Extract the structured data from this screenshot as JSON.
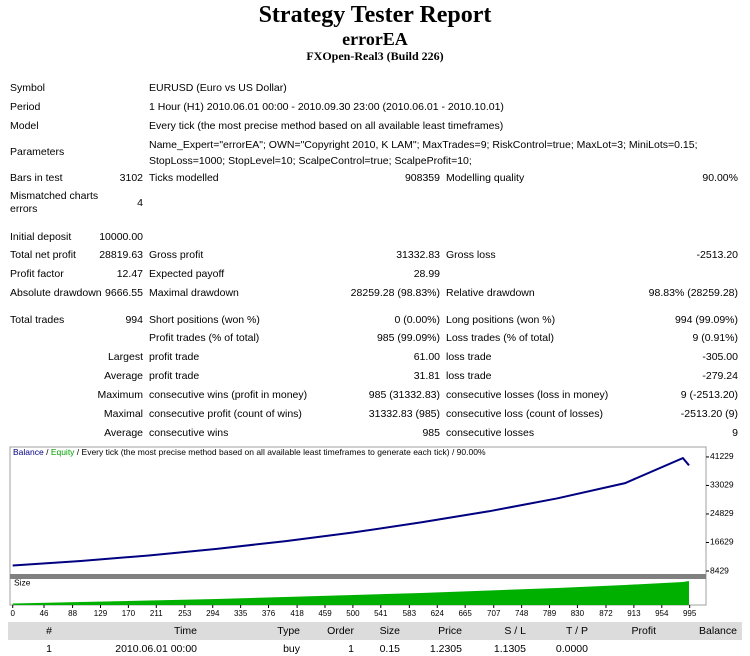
{
  "header": {
    "title": "Strategy Tester Report",
    "expert": "errorEA",
    "server": "FXOpen-Real3 (Build 226)"
  },
  "report": {
    "rows": [
      {
        "l1": "Symbol",
        "text": "EURUSD (Euro vs US Dollar)"
      },
      {
        "l1": "Period",
        "text": "1 Hour (H1) 2010.06.01 00:00 - 2010.09.30 23:00 (2010.06.01 - 2010.10.01)"
      },
      {
        "l1": "Model",
        "text": "Every tick (the most precise method based on all available least timeframes)"
      },
      {
        "l1": "Parameters",
        "text": "Name_Expert=\"errorEA\"; OWN=\"Copyright 2010, K LAM\"; MaxTrades=9; RiskControl=true; MaxLot=3; MiniLots=0.15; StopLoss=1000; StopLevel=10; ScalpeControl=true; ScalpeProfit=10;"
      },
      {
        "l1": "Bars in test",
        "v1": "3102",
        "l2": "Ticks modelled",
        "v2": "908359",
        "l3": "Modelling quality",
        "v3": "90.00%"
      },
      {
        "l1": "Mismatched charts errors",
        "v1": "4"
      },
      {
        "l1": "Initial deposit",
        "v1": "10000.00"
      },
      {
        "l1": "Total net profit",
        "v1": "28819.63",
        "l2": "Gross profit",
        "v2": "31332.83",
        "l3": "Gross loss",
        "v3": "-2513.20"
      },
      {
        "l1": "Profit factor",
        "v1": "12.47",
        "l2": "Expected payoff",
        "v2": "28.99"
      },
      {
        "l1": "Absolute drawdown",
        "v1": "9666.55",
        "l2": "Maximal drawdown",
        "v2": "28259.28 (98.83%)",
        "l3": "Relative drawdown",
        "v3": "98.83% (28259.28)"
      },
      {
        "l1": "Total trades",
        "v1": "994",
        "l2": "Short positions (won %)",
        "v2": "0 (0.00%)",
        "l3": "Long positions (won %)",
        "v3": "994 (99.09%)"
      },
      {
        "l2": "Profit trades (% of total)",
        "v2": "985 (99.09%)",
        "l3": "Loss trades (% of total)",
        "v3": "9 (0.91%)"
      },
      {
        "l1": "Largest",
        "l2": "profit trade",
        "v2": "61.00",
        "l3": "loss trade",
        "v3": "-305.00"
      },
      {
        "l1": "Average",
        "l2": "profit trade",
        "v2": "31.81",
        "l3": "loss trade",
        "v3": "-279.24"
      },
      {
        "l1": "Maximum",
        "l2": "consecutive wins (profit in money)",
        "v2": "985 (31332.83)",
        "l3": "consecutive losses (loss in money)",
        "v3": "9 (-2513.20)"
      },
      {
        "l1": "Maximal",
        "l2": "consecutive profit (count of wins)",
        "v2": "31332.83 (985)",
        "l3": "consecutive loss (count of losses)",
        "v3": "-2513.20 (9)"
      },
      {
        "l1": "Average",
        "l2": "consecutive wins",
        "v2": "985",
        "l3": "consecutive losses",
        "v3": "9"
      }
    ]
  },
  "chart_data": {
    "type": "line",
    "note": "Every tick (the most precise method based on all available least timeframes to generate each tick)",
    "quality": "90.00%",
    "separator": " / ",
    "x": [
      0,
      100,
      200,
      300,
      400,
      500,
      600,
      700,
      800,
      900,
      985,
      994
    ],
    "series": [
      {
        "name": "Balance",
        "color": "#000080",
        "values": [
          10000,
          11300,
          12900,
          14800,
          17000,
          19500,
          22400,
          25600,
          29300,
          33700,
          40900,
          38819.63
        ]
      },
      {
        "name": "Equity",
        "color": "#00a000",
        "values": [
          10000,
          11300,
          12900,
          14800,
          17000,
          19500,
          22400,
          25600,
          29300,
          33700,
          40900,
          38819.63
        ]
      },
      {
        "name": "Size",
        "color": "#00b000",
        "axis": "y2",
        "values": [
          0.15,
          0.3,
          0.45,
          0.6,
          0.8,
          1.0,
          1.2,
          1.45,
          1.7,
          2.0,
          2.3,
          2.4
        ]
      }
    ],
    "xlim": [
      -4,
      1019
    ],
    "xticks": [
      0,
      46,
      88,
      129,
      170,
      211,
      253,
      294,
      335,
      376,
      418,
      459,
      500,
      541,
      583,
      624,
      665,
      707,
      748,
      789,
      830,
      872,
      913,
      954,
      995
    ],
    "ylim": [
      7572,
      44086
    ],
    "yticks": [
      8429,
      16629,
      24829,
      33029,
      41229
    ],
    "y2lim": [
      0,
      2.6
    ]
  },
  "trades": {
    "columns": [
      "#",
      "Time",
      "Type",
      "Order",
      "Size",
      "Price",
      "S / L",
      "T / P",
      "Profit",
      "Balance"
    ],
    "rows": [
      [
        "1",
        "2010.06.01 00:00",
        "buy",
        "1",
        "0.15",
        "1.2305",
        "1.1305",
        "0.0000"
      ]
    ]
  }
}
